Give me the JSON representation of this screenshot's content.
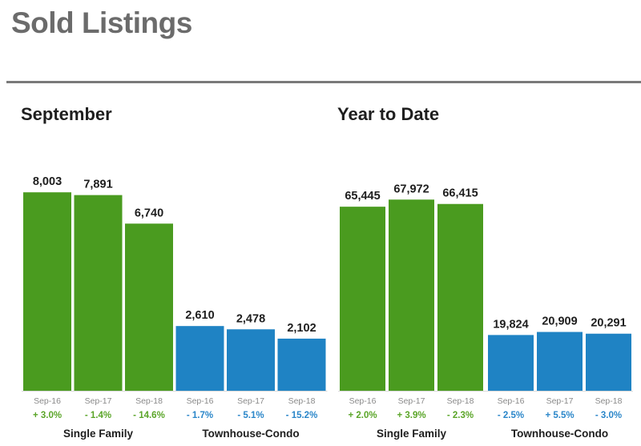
{
  "page": {
    "title": "Sold Listings"
  },
  "colors": {
    "single_family": "#4a9b1f",
    "townhouse_condo": "#1f83c4",
    "positive_change": "#5aa528",
    "negative_change": "#2a86c9",
    "baseline": "#d9d9d9"
  },
  "chart_data": [
    {
      "type": "bar",
      "title": "September",
      "groups": [
        {
          "name": "Single Family",
          "color": "#4a9b1f",
          "bars": [
            {
              "period": "Sep-16",
              "value": 8003,
              "label": "8,003",
              "change": "+ 3.0%"
            },
            {
              "period": "Sep-17",
              "value": 7891,
              "label": "7,891",
              "change": "- 1.4%"
            },
            {
              "period": "Sep-18",
              "value": 6740,
              "label": "6,740",
              "change": "- 14.6%"
            }
          ]
        },
        {
          "name": "Townhouse-Condo",
          "color": "#1f83c4",
          "bars": [
            {
              "period": "Sep-16",
              "value": 2610,
              "label": "2,610",
              "change": "- 1.7%"
            },
            {
              "period": "Sep-17",
              "value": 2478,
              "label": "2,478",
              "change": "- 5.1%"
            },
            {
              "period": "Sep-18",
              "value": 2102,
              "label": "2,102",
              "change": "- 15.2%"
            }
          ]
        }
      ],
      "ylim": [
        0,
        9300
      ],
      "grid": false
    },
    {
      "type": "bar",
      "title": "Year to Date",
      "groups": [
        {
          "name": "Single Family",
          "color": "#4a9b1f",
          "bars": [
            {
              "period": "Sep-16",
              "value": 65445,
              "label": "65,445",
              "change": "+ 2.0%"
            },
            {
              "period": "Sep-17",
              "value": 67972,
              "label": "67,972",
              "change": "+ 3.9%"
            },
            {
              "period": "Sep-18",
              "value": 66415,
              "label": "66,415",
              "change": "- 2.3%"
            }
          ]
        },
        {
          "name": "Townhouse-Condo",
          "color": "#1f83c4",
          "bars": [
            {
              "period": "Sep-16",
              "value": 19824,
              "label": "19,824",
              "change": "- 2.5%"
            },
            {
              "period": "Sep-17",
              "value": 20909,
              "label": "20,909",
              "change": "+ 5.5%"
            },
            {
              "period": "Sep-18",
              "value": 20291,
              "label": "20,291",
              "change": "- 3.0%"
            }
          ]
        }
      ],
      "ylim": [
        0,
        82000
      ],
      "grid": false
    }
  ]
}
